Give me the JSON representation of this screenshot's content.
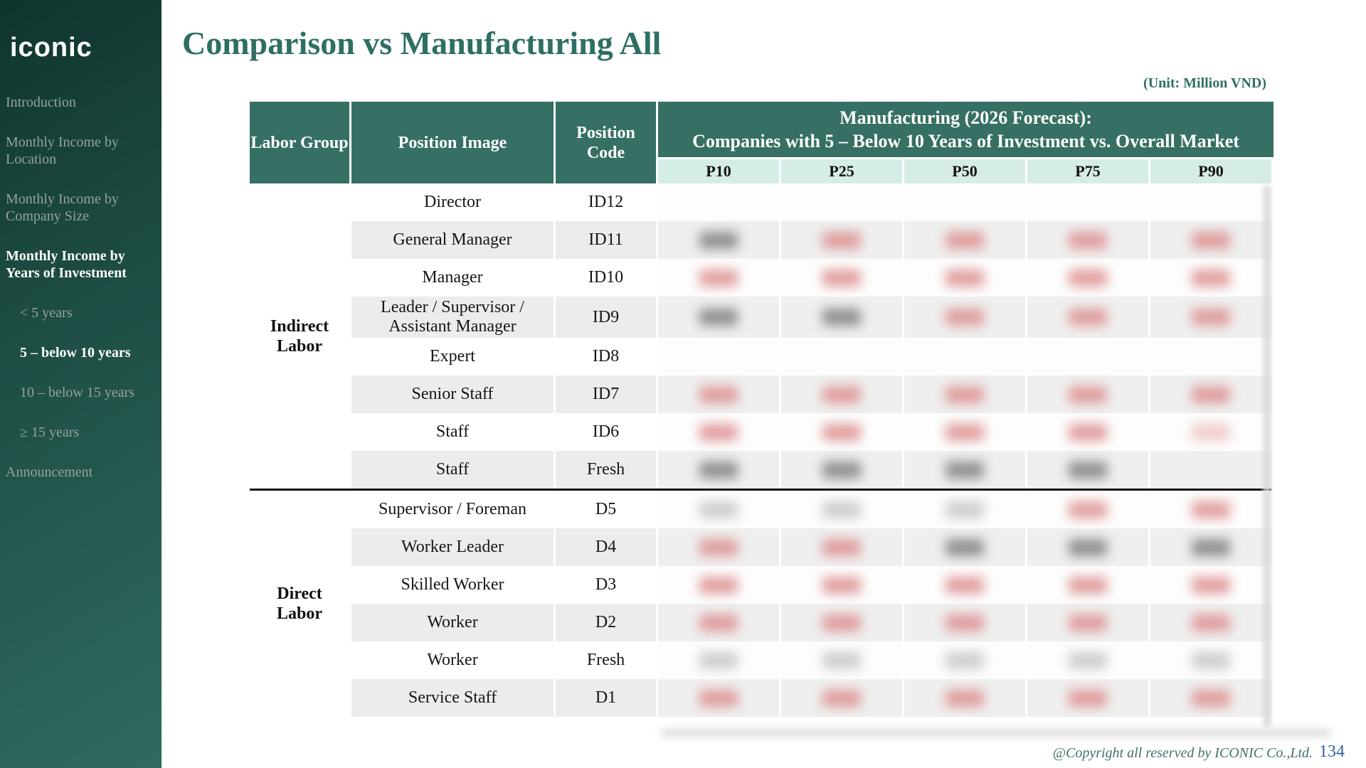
{
  "sidebar": {
    "logo": "iconic",
    "items": [
      {
        "label": "Introduction",
        "active": false,
        "indent": false
      },
      {
        "label": "Monthly Income by Location",
        "active": false,
        "indent": false
      },
      {
        "label": "Monthly Income by Company Size",
        "active": false,
        "indent": false
      },
      {
        "label": "Monthly Income by Years of Investment",
        "active": true,
        "indent": false
      },
      {
        "label": "< 5 years",
        "active": false,
        "indent": true
      },
      {
        "label": "5 – below 10 years",
        "active": true,
        "indent": true
      },
      {
        "label": "10 – below 15 years",
        "active": false,
        "indent": true
      },
      {
        "label": "≥ 15 years",
        "active": false,
        "indent": true
      },
      {
        "label": "Announcement",
        "active": false,
        "indent": false
      }
    ]
  },
  "header": {
    "title": "Comparison vs Manufacturing All",
    "unit_note": "(Unit: Million VND)"
  },
  "table": {
    "col_headers": {
      "labor_group": "Labor Group",
      "position_image": "Position Image",
      "position_code": "Position Code"
    },
    "span_header_line1": "Manufacturing (2026 Forecast):",
    "span_header_line2": "Companies with 5 – Below 10 Years of Investment vs. Overall Market",
    "percentiles": [
      "P10",
      "P25",
      "P50",
      "P75",
      "P90"
    ],
    "redaction_note": "numeric cells are blurred in source; tokens describe smudge color",
    "groups": [
      {
        "label": "Indirect Labor",
        "rows": [
          {
            "position": "Director",
            "code": "ID12",
            "shaded": false,
            "blur_values": [
              "none",
              "none",
              "none",
              "none",
              "none"
            ]
          },
          {
            "position": "General Manager",
            "code": "ID11",
            "shaded": true,
            "blur_values": [
              "dark",
              "red",
              "red",
              "red",
              "red"
            ]
          },
          {
            "position": "Manager",
            "code": "ID10",
            "shaded": false,
            "blur_values": [
              "red",
              "red",
              "red",
              "red",
              "red"
            ]
          },
          {
            "position": "Leader / Supervisor / Assistant Manager",
            "code": "ID9",
            "shaded": true,
            "blur_values": [
              "dark",
              "dark",
              "red",
              "red",
              "red"
            ]
          },
          {
            "position": "Expert",
            "code": "ID8",
            "shaded": false,
            "blur_values": [
              "none",
              "none",
              "none",
              "none",
              "none"
            ]
          },
          {
            "position": "Senior Staff",
            "code": "ID7",
            "shaded": true,
            "blur_values": [
              "red",
              "red",
              "red",
              "red",
              "red"
            ]
          },
          {
            "position": "Staff",
            "code": "ID6",
            "shaded": false,
            "blur_values": [
              "red",
              "red",
              "red",
              "red",
              "pink"
            ]
          },
          {
            "position": "Staff",
            "code": "Fresh",
            "shaded": true,
            "blur_values": [
              "dark",
              "dark",
              "dark",
              "dark",
              "none"
            ]
          }
        ]
      },
      {
        "label": "Direct Labor",
        "rows": [
          {
            "position": "Supervisor / Foreman",
            "code": "D5",
            "shaded": false,
            "blur_values": [
              "dim",
              "dim",
              "dim",
              "red",
              "red"
            ]
          },
          {
            "position": "Worker Leader",
            "code": "D4",
            "shaded": true,
            "blur_values": [
              "red",
              "red",
              "dark",
              "dark",
              "dark"
            ]
          },
          {
            "position": "Skilled Worker",
            "code": "D3",
            "shaded": false,
            "blur_values": [
              "red",
              "red",
              "red",
              "red",
              "red"
            ]
          },
          {
            "position": "Worker",
            "code": "D2",
            "shaded": true,
            "blur_values": [
              "red",
              "red",
              "red",
              "red",
              "red"
            ]
          },
          {
            "position": "Worker",
            "code": "Fresh",
            "shaded": false,
            "blur_values": [
              "dim",
              "dim",
              "dim",
              "dim",
              "dim"
            ]
          },
          {
            "position": "Service Staff",
            "code": "D1",
            "shaded": true,
            "blur_values": [
              "red",
              "red",
              "red",
              "red",
              "red"
            ]
          }
        ]
      }
    ]
  },
  "footer": {
    "copyright": "@Copyright all reserved by ICONIC Co.,Ltd.",
    "page_number": "134"
  },
  "colors": {
    "accent_teal": "#2e6f63",
    "header_teal": "#366f64",
    "subheader_mint": "#d6ede7",
    "row_stripe": "#ececec",
    "sidebar_dim_text": "#94a39d",
    "page_number_blue": "#2d5f9e",
    "blur_tokens": {
      "red": "#dd8f8f",
      "pink": "#efc4c4",
      "dark": "#7f7f7f",
      "dim": "#c6c6c6"
    }
  }
}
